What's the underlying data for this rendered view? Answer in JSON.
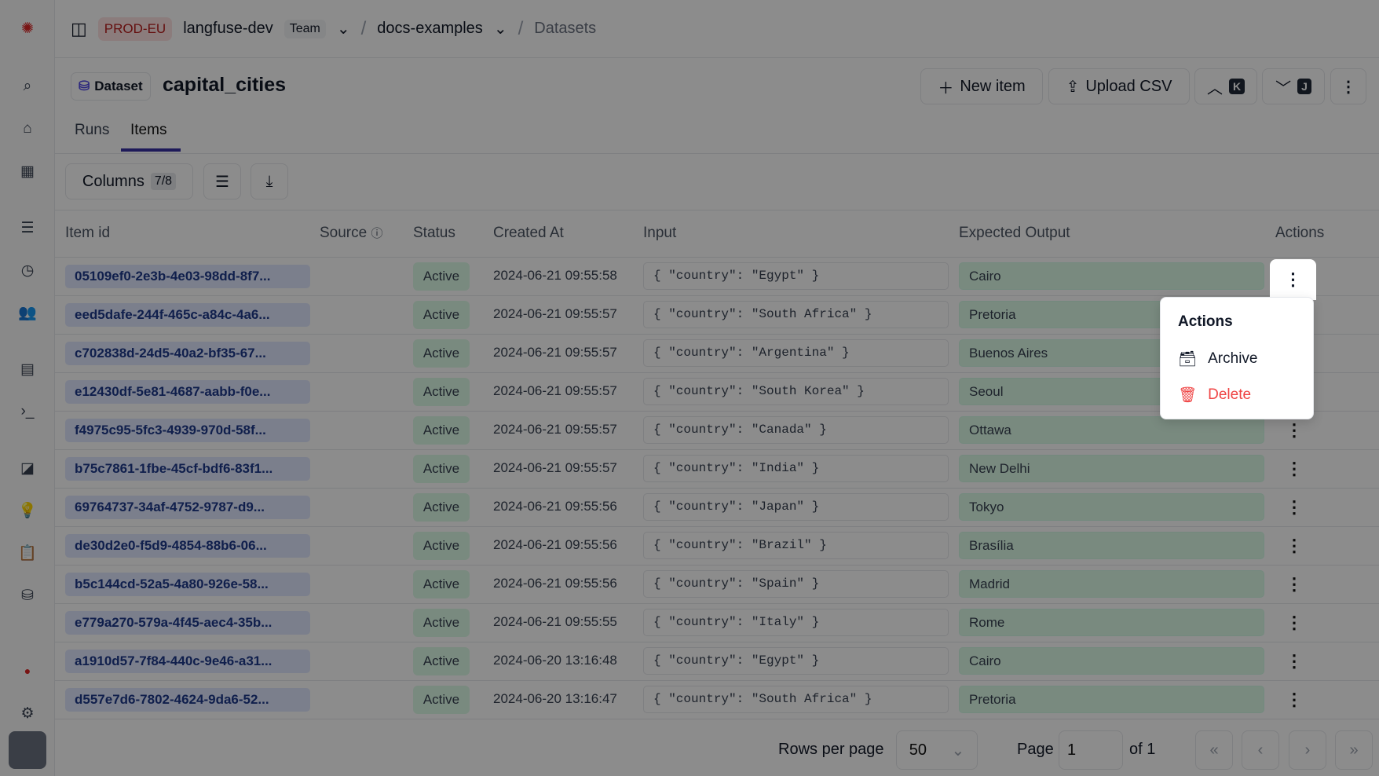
{
  "topbar": {
    "env": "PROD-EU",
    "org": "langfuse-dev",
    "plan": "Team",
    "project": "docs-examples",
    "page": "Datasets"
  },
  "header": {
    "badge": "Dataset",
    "title": "capital_cities",
    "new_item": "New item",
    "upload_csv": "Upload CSV",
    "prev_key": "K",
    "next_key": "J"
  },
  "tabs": [
    "Runs",
    "Items"
  ],
  "toolbar": {
    "columns_label": "Columns",
    "columns_count": "7/8"
  },
  "table": {
    "headers": [
      "Item id",
      "Source",
      "Status",
      "Created At",
      "Input",
      "Expected Output",
      "Actions"
    ],
    "rows": [
      {
        "id": "05109ef0-2e3b-4e03-98dd-8f7...",
        "status": "Active",
        "created": "2024-06-21 09:55:58",
        "input": "{ \"country\": \"Egypt\" }",
        "output": "Cairo"
      },
      {
        "id": "eed5dafe-244f-465c-a84c-4a6...",
        "status": "Active",
        "created": "2024-06-21 09:55:57",
        "input": "{ \"country\": \"South Africa\" }",
        "output": "Pretoria"
      },
      {
        "id": "c702838d-24d5-40a2-bf35-67...",
        "status": "Active",
        "created": "2024-06-21 09:55:57",
        "input": "{ \"country\": \"Argentina\" }",
        "output": "Buenos Aires"
      },
      {
        "id": "e12430df-5e81-4687-aabb-f0e...",
        "status": "Active",
        "created": "2024-06-21 09:55:57",
        "input": "{ \"country\": \"South Korea\" }",
        "output": "Seoul"
      },
      {
        "id": "f4975c95-5fc3-4939-970d-58f...",
        "status": "Active",
        "created": "2024-06-21 09:55:57",
        "input": "{ \"country\": \"Canada\" }",
        "output": "Ottawa"
      },
      {
        "id": "b75c7861-1fbe-45cf-bdf6-83f1...",
        "status": "Active",
        "created": "2024-06-21 09:55:57",
        "input": "{ \"country\": \"India\" }",
        "output": "New Delhi"
      },
      {
        "id": "69764737-34af-4752-9787-d9...",
        "status": "Active",
        "created": "2024-06-21 09:55:56",
        "input": "{ \"country\": \"Japan\" }",
        "output": "Tokyo"
      },
      {
        "id": "de30d2e0-f5d9-4854-88b6-06...",
        "status": "Active",
        "created": "2024-06-21 09:55:56",
        "input": "{ \"country\": \"Brazil\" }",
        "output": "Brasília"
      },
      {
        "id": "b5c144cd-52a5-4a80-926e-58...",
        "status": "Active",
        "created": "2024-06-21 09:55:56",
        "input": "{ \"country\": \"Spain\" }",
        "output": "Madrid"
      },
      {
        "id": "e779a270-579a-4f45-aec4-35b...",
        "status": "Active",
        "created": "2024-06-21 09:55:55",
        "input": "{ \"country\": \"Italy\" }",
        "output": "Rome"
      },
      {
        "id": "a1910d57-7f84-440c-9e46-a31...",
        "status": "Active",
        "created": "2024-06-20 13:16:48",
        "input": "{ \"country\": \"Egypt\" }",
        "output": "Cairo"
      },
      {
        "id": "d557e7d6-7802-4624-9da6-52...",
        "status": "Active",
        "created": "2024-06-20 13:16:47",
        "input": "{ \"country\": \"South Africa\" }",
        "output": "Pretoria"
      }
    ]
  },
  "menu": {
    "title": "Actions",
    "archive": "Archive",
    "delete": "Delete",
    "delete_color": "#ef4444"
  },
  "footer": {
    "rows_per_page_label": "Rows per page",
    "rows_per_page": "50",
    "page_label": "Page",
    "page": "1",
    "of": "of 1"
  }
}
